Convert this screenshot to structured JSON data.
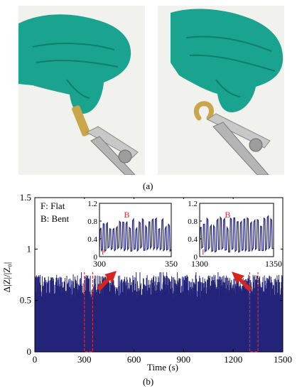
{
  "panel_labels": {
    "a": "(a)",
    "b": "(b)"
  },
  "photos": {
    "left": {
      "subject": "gloved hand holding flat sensor with clamp"
    },
    "right": {
      "subject": "gloved hand bending sensor with clamp"
    },
    "glove_color": "#1aa38e",
    "sensor_color": "#c9a64a"
  },
  "colors": {
    "series": "#23237a",
    "highlight": "#e3262d",
    "arrow": "#d8241f"
  },
  "chart_data": [
    {
      "type": "bar",
      "xlabel": "Time (s)",
      "ylabel": "Δ|Z|/|Z₀|",
      "xlim": [
        0,
        1500
      ],
      "ylim": [
        0,
        1.5
      ],
      "xticks": [
        0,
        300,
        600,
        900,
        1200,
        1500
      ],
      "yticks": [
        0,
        0.5,
        1,
        1.5
      ],
      "legend": [
        "F: Flat",
        "B: Bent"
      ],
      "series": [
        {
          "baseline": 0.5,
          "typical_peak": 0.75,
          "max_peak": 0.88,
          "sample_interval_s": 1.5
        }
      ],
      "highlight_windows": [
        [
          300,
          350
        ],
        [
          1300,
          1350
        ]
      ]
    },
    {
      "type": "line",
      "xlim": [
        300,
        350
      ],
      "ylim": [
        0,
        1.2
      ],
      "xticks": [
        300,
        350
      ],
      "yticks": [
        0,
        0.4,
        0.8,
        1.2
      ],
      "annotations": [
        "B",
        "F"
      ],
      "series": [
        {
          "low": 0.15,
          "high": 0.7,
          "cycles": 22
        }
      ]
    },
    {
      "type": "line",
      "xlim": [
        1300,
        1350
      ],
      "ylim": [
        0,
        1.2
      ],
      "xticks": [
        1300,
        1350
      ],
      "yticks": [
        0,
        0.4,
        0.8,
        1.2
      ],
      "annotations": [
        "B",
        "F"
      ],
      "series": [
        {
          "low": 0.15,
          "high": 0.75,
          "cycles": 22
        }
      ]
    }
  ]
}
